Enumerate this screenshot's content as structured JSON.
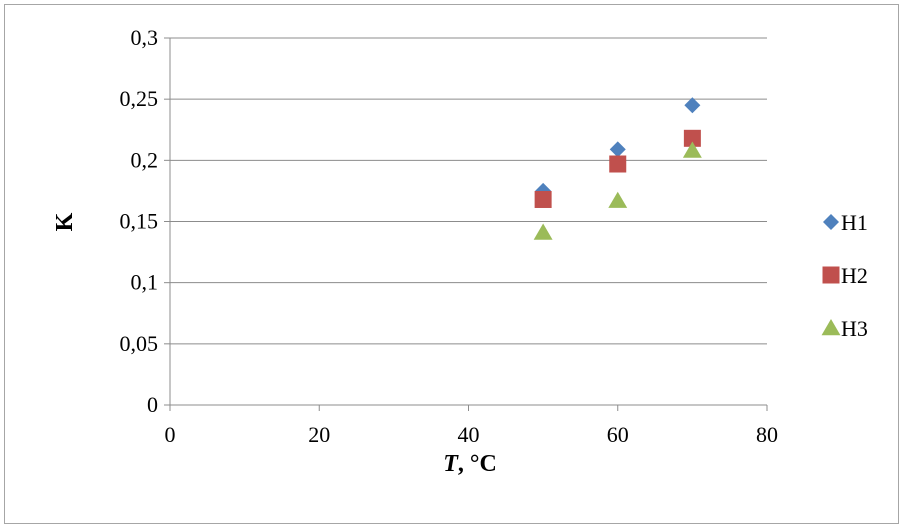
{
  "chart_data": {
    "type": "scatter",
    "xlabel": "T, °C",
    "xlabel_italic": "T",
    "xlabel_rest": ", °C",
    "ylabel": "K",
    "xlim": [
      0,
      80
    ],
    "ylim": [
      0,
      0.3
    ],
    "x_ticks": [
      0,
      20,
      40,
      60,
      80
    ],
    "x_tick_labels": [
      "0",
      "20",
      "40",
      "60",
      "80"
    ],
    "y_ticks": [
      0,
      0.05,
      0.1,
      0.15,
      0.2,
      0.25,
      0.3
    ],
    "y_tick_labels": [
      "0",
      "0,05",
      "0,1",
      "0,15",
      "0,2",
      "0,25",
      "0,3"
    ],
    "grid": "horizontal",
    "legend_position": "right",
    "series": [
      {
        "name": "H1",
        "marker": "diamond",
        "color": "#4f81bd",
        "x": [
          50,
          60,
          70
        ],
        "y": [
          0.175,
          0.209,
          0.245
        ]
      },
      {
        "name": "H2",
        "marker": "square",
        "color": "#c0504d",
        "x": [
          50,
          60,
          70
        ],
        "y": [
          0.168,
          0.197,
          0.218
        ]
      },
      {
        "name": "H3",
        "marker": "triangle",
        "color": "#9bbb59",
        "x": [
          50,
          60,
          70
        ],
        "y": [
          0.141,
          0.167,
          0.208
        ]
      }
    ]
  }
}
